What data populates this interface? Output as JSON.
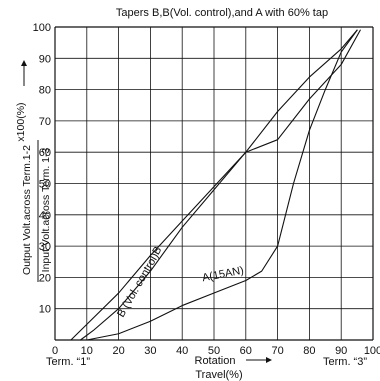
{
  "chart_data": {
    "type": "line",
    "title": "Tapers B,B(Vol. control),and A  with 60% tap",
    "xlabel_line1": "Rotation",
    "xlabel_line2": "Travel(%)",
    "ylabel_numerator": "Output Volt.across Term.1-2",
    "ylabel_denominator": "Input Volt.across Term. 1-3",
    "ylabel_suffix": "x100(%)",
    "xlim": [
      0,
      100
    ],
    "ylim": [
      0,
      100
    ],
    "grid": true,
    "x_ticks": [
      "0",
      "10",
      "20",
      "30",
      "40",
      "50",
      "60",
      "70",
      "80",
      "90",
      "100"
    ],
    "y_ticks": [
      "0",
      "10",
      "20",
      "30",
      "40",
      "50",
      "60",
      "70",
      "80",
      "90",
      "100"
    ],
    "terminal_labels": {
      "start": "Term. “1”",
      "end": "Term. “3”"
    },
    "series": [
      {
        "name": "B",
        "x": [
          5,
          10,
          20,
          30,
          40,
          50,
          60,
          70,
          80,
          90,
          95
        ],
        "y": [
          0,
          5,
          15,
          27,
          38,
          49,
          60,
          73,
          84,
          93,
          99
        ]
      },
      {
        "name": "B (Vol. control)",
        "x": [
          8,
          12,
          20,
          30,
          40,
          50,
          60,
          70,
          80,
          90,
          96
        ],
        "y": [
          0,
          3,
          10,
          22,
          36,
          48,
          60,
          64,
          77,
          88,
          99
        ]
      },
      {
        "name": "A(15AN)",
        "x": [
          10,
          20,
          30,
          40,
          50,
          60,
          65,
          70,
          75,
          80,
          85,
          90,
          95
        ],
        "y": [
          0,
          2,
          6,
          11,
          15,
          19,
          22,
          30,
          50,
          67,
          80,
          92,
          99
        ]
      }
    ]
  }
}
